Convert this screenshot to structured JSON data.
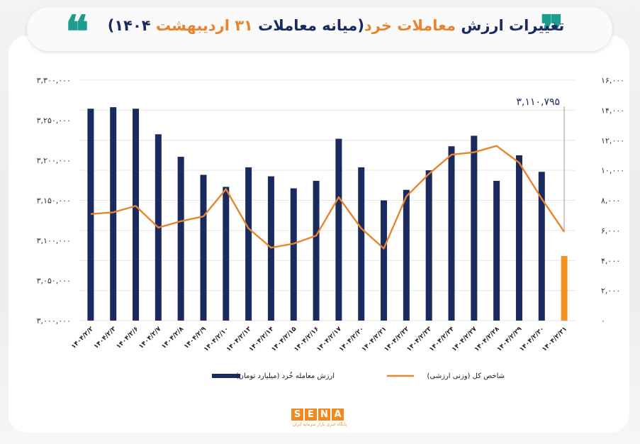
{
  "header": {
    "title_part1": "تغییرات ارزش ",
    "title_part2": "معاملات خرد",
    "title_part3": "(میانه معاملات ",
    "title_part4": "۳۱ اردیبهشت",
    "title_part5": " ۱۴۰۴)",
    "quote_glyph_left": "❝",
    "quote_glyph_right": "❞"
  },
  "logo": {
    "letters": [
      "S",
      "E",
      "N",
      "A"
    ],
    "subtitle": "پایگاه خبری بازار سرمایه ایران"
  },
  "colors": {
    "bar_dark": "#1b2a5e",
    "bar_highlight": "#f39221",
    "line": "#e8842f",
    "title_dark": "#1b2a5e",
    "title_accent": "#e8842f",
    "quote": "#1f9c90"
  },
  "chart_data": {
    "type": "bar",
    "categories": [
      "۱۴۰۴/۲/۲",
      "۱۴۰۴/۲/۳",
      "۱۴۰۴/۲/۶",
      "۱۴۰۴/۲/۷",
      "۱۴۰۴/۲/۸",
      "۱۴۰۴/۲/۹",
      "۱۴۰۴/۲/۱۰",
      "۱۴۰۴/۲/۱۳",
      "۱۴۰۴/۲/۱۴",
      "۱۴۰۴/۲/۱۵",
      "۱۴۰۴/۲/۱۶",
      "۱۴۰۴/۲/۱۷",
      "۱۴۰۴/۲/۲۰",
      "۱۴۰۴/۲/۲۱",
      "۱۴۰۴/۲/۲۲",
      "۱۴۰۴/۲/۲۳",
      "۱۴۰۴/۲/۲۴",
      "۱۴۰۴/۲/۲۷",
      "۱۴۰۴/۲/۲۸",
      "۱۴۰۴/۲/۲۹",
      "۱۴۰۴/۲/۳۰",
      "۱۴۰۴/۲/۳۱"
    ],
    "series": [
      {
        "name": "ارزش معامله خُرد (میلیارد تومان)",
        "type": "bar",
        "axis": "right",
        "values": [
          14100,
          14200,
          14100,
          12400,
          10900,
          9700,
          8900,
          10200,
          9600,
          8800,
          9300,
          12100,
          10200,
          8000,
          8700,
          10000,
          11600,
          12300,
          9300,
          11000,
          9900,
          4300
        ],
        "highlight_last": true
      },
      {
        "name": "شاخص کل (وزنی ارزشی)",
        "type": "line",
        "axis": "left",
        "values": [
          3133000,
          3135000,
          3143000,
          3116000,
          3124000,
          3130000,
          3164000,
          3115000,
          3091000,
          3096000,
          3106000,
          3154000,
          3115000,
          3090000,
          3155000,
          3183000,
          3207000,
          3210000,
          3218000,
          3197000,
          3152000,
          3110795
        ]
      }
    ],
    "left_axis": {
      "ylim": [
        3000000,
        3300000
      ],
      "ticks": [
        "۳,۰۰۰,۰۰۰",
        "۳,۰۵۰,۰۰۰",
        "۳,۱۰۰,۰۰۰",
        "۳,۱۵۰,۰۰۰",
        "۳,۲۰۰,۰۰۰",
        "۳,۲۵۰,۰۰۰",
        "۳,۳۰۰,۰۰۰"
      ]
    },
    "right_axis": {
      "ylim": [
        0,
        16000
      ],
      "ticks": [
        "۰",
        "۲,۰۰۰",
        "۴,۰۰۰",
        "۶,۰۰۰",
        "۸,۰۰۰",
        "۱۰,۰۰۰",
        "۱۲,۰۰۰",
        "۱۴,۰۰۰",
        "۱۶,۰۰۰"
      ]
    },
    "annotation": {
      "text": "۳,۱۱۰,۷۹۵"
    },
    "grid": true,
    "legend_position": "bottom"
  }
}
